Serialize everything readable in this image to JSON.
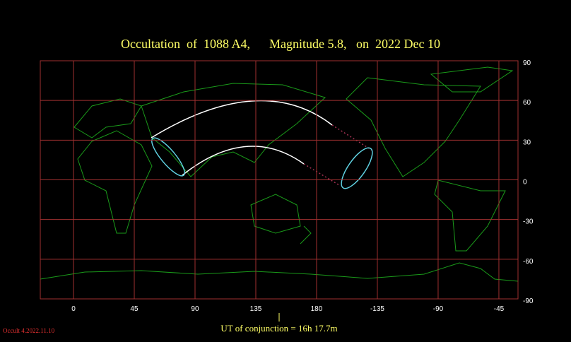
{
  "title": "Occultation  of  1088 A4,      Magnitude 5.8,   on  2022 Dec 10",
  "map": {
    "longitude_ticks": [
      0,
      45,
      90,
      135,
      180,
      {
        "value": 225,
        "label": "-135"
      },
      {
        "value": 270,
        "label": "-90"
      },
      {
        "value": 315,
        "label": "-45"
      }
    ],
    "latitude_ticks": [
      90,
      60,
      30,
      0,
      -30,
      -60,
      -90
    ]
  },
  "conjunction_label": "UT of conjunction = 16h 17.7m",
  "version": "Occult 4.2022.11.10"
}
